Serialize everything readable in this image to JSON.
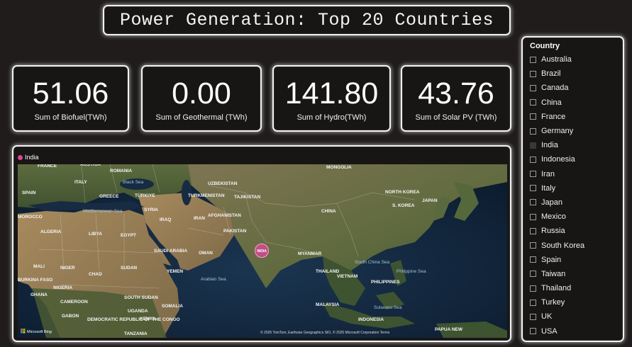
{
  "title": "Power Generation: Top 20 Countries",
  "cards": [
    {
      "value": "51.06",
      "label": "Sum of Biofuel(TWh)"
    },
    {
      "value": "0.00",
      "label": "Sum of Geothermal (TWh)"
    },
    {
      "value": "141.80",
      "label": "Sum of Hydro(TWh)"
    },
    {
      "value": "43.76",
      "label": "Sum of Solar PV (TWh)"
    }
  ],
  "map": {
    "legend_label": "India",
    "bubble_label": "INDIA",
    "bubble_color": "#e0449a",
    "attribution": "© 2025 TomTom, Earthstar Geographics SIO, © 2025 Microsoft Corporation  Terms",
    "bing_label": "Microsoft Bing",
    "places": [
      {
        "name": "FRANCE",
        "kind": "country"
      },
      {
        "name": "AUSTRIA",
        "kind": "country"
      },
      {
        "name": "ROMANIA",
        "kind": "country"
      },
      {
        "name": "ITALY",
        "kind": "country"
      },
      {
        "name": "SPAIN",
        "kind": "country"
      },
      {
        "name": "GREECE",
        "kind": "country"
      },
      {
        "name": "TÜRKIYE",
        "kind": "country"
      },
      {
        "name": "UZBEKISTAN",
        "kind": "country"
      },
      {
        "name": "TURKMENISTAN",
        "kind": "country"
      },
      {
        "name": "TAJIKISTAN",
        "kind": "country"
      },
      {
        "name": "MONGOLIA",
        "kind": "country"
      },
      {
        "name": "NORTH KOREA",
        "kind": "country"
      },
      {
        "name": "JAPAN",
        "kind": "country"
      },
      {
        "name": "S. KOREA",
        "kind": "country"
      },
      {
        "name": "CHINA",
        "kind": "country"
      },
      {
        "name": "SYRIA",
        "kind": "country"
      },
      {
        "name": "IRAQ",
        "kind": "country"
      },
      {
        "name": "IRAN",
        "kind": "country"
      },
      {
        "name": "AFGHANISTAN",
        "kind": "country"
      },
      {
        "name": "PAKISTAN",
        "kind": "country"
      },
      {
        "name": "MOROCCO",
        "kind": "country"
      },
      {
        "name": "ALGERIA",
        "kind": "country"
      },
      {
        "name": "LIBYA",
        "kind": "country"
      },
      {
        "name": "EGYPT",
        "kind": "country"
      },
      {
        "name": "SAUDI ARABIA",
        "kind": "country"
      },
      {
        "name": "OMAN",
        "kind": "country"
      },
      {
        "name": "MYANMAR",
        "kind": "country"
      },
      {
        "name": "THAILAND",
        "kind": "country"
      },
      {
        "name": "VIETNAM",
        "kind": "country"
      },
      {
        "name": "PHILIPPINES",
        "kind": "country"
      },
      {
        "name": "MALI",
        "kind": "country"
      },
      {
        "name": "NIGER",
        "kind": "country"
      },
      {
        "name": "CHAD",
        "kind": "country"
      },
      {
        "name": "SUDAN",
        "kind": "country"
      },
      {
        "name": "YEMEN",
        "kind": "country"
      },
      {
        "name": "BURKINA FASO",
        "kind": "country"
      },
      {
        "name": "NIGERIA",
        "kind": "country"
      },
      {
        "name": "GHANA",
        "kind": "country"
      },
      {
        "name": "SOUTH SUDAN",
        "kind": "country"
      },
      {
        "name": "CAMEROON",
        "kind": "country"
      },
      {
        "name": "GABON",
        "kind": "country"
      },
      {
        "name": "UGANDA",
        "kind": "country"
      },
      {
        "name": "KENYA",
        "kind": "country"
      },
      {
        "name": "SOMALIA",
        "kind": "country"
      },
      {
        "name": "DEMOCRATIC REPUBLIC OF THE CONGO",
        "kind": "country"
      },
      {
        "name": "TANZANIA",
        "kind": "country"
      },
      {
        "name": "MALAYSIA",
        "kind": "country"
      },
      {
        "name": "INDONESIA",
        "kind": "country"
      },
      {
        "name": "PAPUA NEW",
        "kind": "country"
      },
      {
        "name": "Black Sea",
        "kind": "sea"
      },
      {
        "name": "Mediterranean Sea",
        "kind": "sea"
      },
      {
        "name": "Arabian Sea",
        "kind": "sea"
      },
      {
        "name": "South China Sea",
        "kind": "sea"
      },
      {
        "name": "Philippine Sea",
        "kind": "sea"
      },
      {
        "name": "Sulawesi Sea",
        "kind": "sea"
      }
    ]
  },
  "slicer": {
    "title": "Country",
    "selected": "India",
    "items": [
      "Australia",
      "Brazil",
      "Canada",
      "China",
      "France",
      "Germany",
      "India",
      "Indonesia",
      "Iran",
      "Italy",
      "Japan",
      "Mexico",
      "Russia",
      "South Korea",
      "Spain",
      "Taiwan",
      "Thailand",
      "Turkey",
      "UK",
      "USA"
    ]
  }
}
